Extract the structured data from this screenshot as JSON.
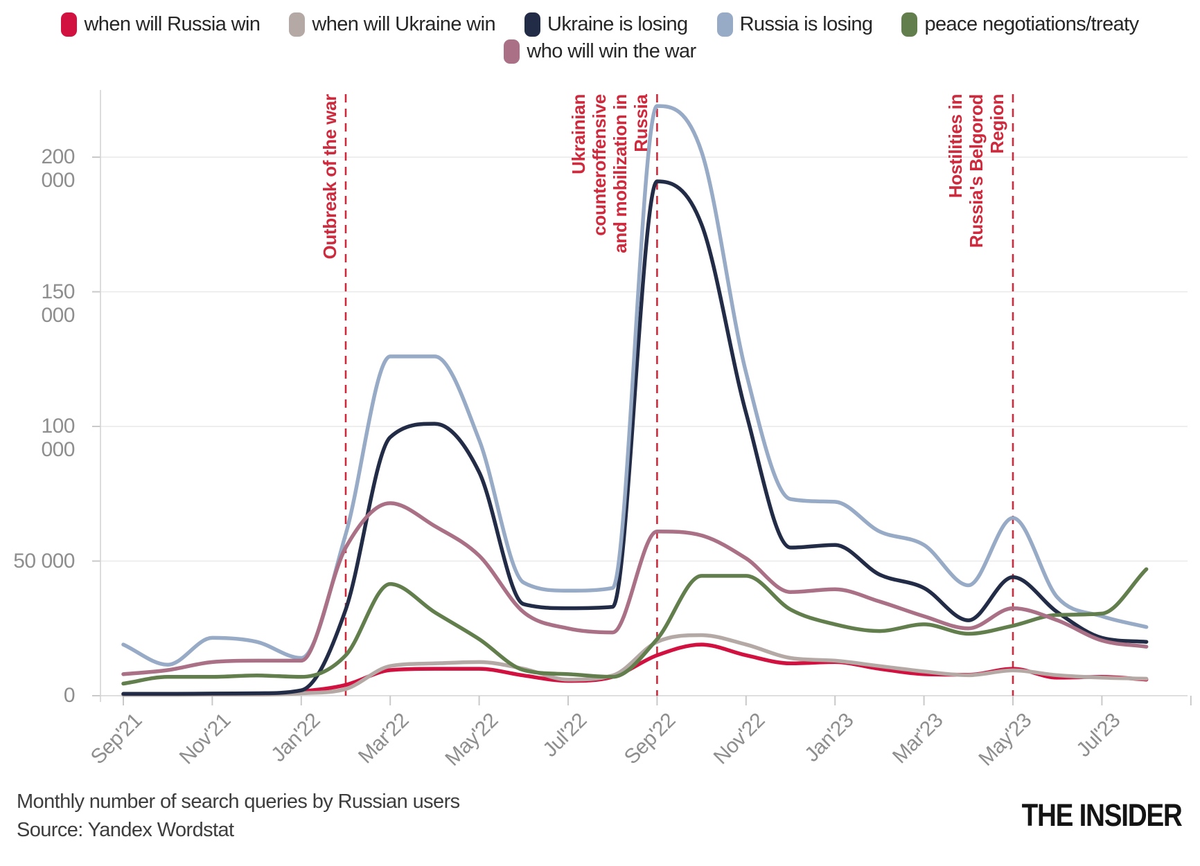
{
  "chart_data": {
    "type": "line",
    "title": "Monthly number of search queries by Russian users",
    "source": "Source: Yandex Wordstat",
    "legend_position": "top",
    "grid": true,
    "x_categories": [
      "Sep'21",
      "Oct'21",
      "Nov'21",
      "Dec'21",
      "Jan'22",
      "Feb'22",
      "Mar'22",
      "Apr'22",
      "May'22",
      "Jun'22",
      "Jul'22",
      "Aug'22",
      "Sep'22",
      "Oct'22",
      "Nov'22",
      "Dec'22",
      "Jan'23",
      "Feb'23",
      "Mar'23",
      "Apr'23",
      "May'23",
      "Jun'23",
      "Jul'23",
      "Aug'23"
    ],
    "x_ticks": [
      {
        "month_index": 0,
        "label": "Sep'21"
      },
      {
        "month_index": 2,
        "label": "Nov'21"
      },
      {
        "month_index": 4,
        "label": "Jan'22"
      },
      {
        "month_index": 6,
        "label": "Mar'22"
      },
      {
        "month_index": 8,
        "label": "May'22"
      },
      {
        "month_index": 10,
        "label": "Jul'22"
      },
      {
        "month_index": 12,
        "label": "Sep'22"
      },
      {
        "month_index": 14,
        "label": "Nov'22"
      },
      {
        "month_index": 16,
        "label": "Jan'23"
      },
      {
        "month_index": 18,
        "label": "Mar'23"
      },
      {
        "month_index": 20,
        "label": "May'23"
      },
      {
        "month_index": 22,
        "label": "Jul'23"
      }
    ],
    "unlabeled_tick_indices": [
      24
    ],
    "y_axis": {
      "min": 0,
      "max": 224000,
      "ticks": [
        {
          "value": 0,
          "label": "0"
        },
        {
          "value": 50000,
          "label": "50 000"
        },
        {
          "value": 100000,
          "label": "100 000"
        },
        {
          "value": 150000,
          "label": "150 000"
        },
        {
          "value": 200000,
          "label": "200 000"
        }
      ]
    },
    "series": [
      {
        "name": "when will Russia win",
        "color": "#d11240",
        "values": [
          500,
          500,
          600,
          600,
          1600,
          4000,
          9500,
          10000,
          10000,
          7500,
          5500,
          7000,
          15000,
          19000,
          15000,
          12000,
          12500,
          10000,
          8000,
          7800,
          10000,
          6700,
          7000,
          6000
        ]
      },
      {
        "name": "when will Ukraine win",
        "color": "#b4a9a4",
        "values": [
          300,
          300,
          400,
          400,
          900,
          2500,
          11000,
          12000,
          12500,
          10000,
          6000,
          7500,
          20000,
          22500,
          19000,
          14000,
          13000,
          11000,
          9000,
          7600,
          9400,
          7600,
          6700,
          6300
        ]
      },
      {
        "name": "Ukraine is losing",
        "color": "#232c47",
        "values": [
          700,
          700,
          800,
          900,
          2000,
          32000,
          96000,
          101000,
          83000,
          34000,
          32500,
          33000,
          191000,
          175000,
          105000,
          55000,
          56000,
          45000,
          40000,
          28000,
          44000,
          31000,
          21500,
          20000
        ]
      },
      {
        "name": "Russia is losing",
        "color": "#97aac6",
        "values": [
          19000,
          11500,
          21500,
          20000,
          14000,
          60000,
          126000,
          126000,
          95000,
          42000,
          39000,
          40000,
          219000,
          202000,
          120000,
          73000,
          72000,
          61000,
          56000,
          41000,
          66000,
          36500,
          29500,
          25500
        ]
      },
      {
        "name": "peace negotiations/treaty",
        "color": "#637e4d",
        "values": [
          4500,
          7000,
          7000,
          7500,
          7000,
          15000,
          41500,
          31000,
          21000,
          9500,
          8000,
          7000,
          21000,
          44500,
          44500,
          32000,
          26500,
          24000,
          26500,
          23000,
          26000,
          30000,
          30500,
          47000
        ]
      },
      {
        "name": "who will win the war",
        "color": "#a97086",
        "values": [
          8000,
          9500,
          12500,
          13000,
          13000,
          55000,
          71500,
          63000,
          52000,
          31000,
          25000,
          23500,
          61000,
          59500,
          51000,
          38500,
          39500,
          35000,
          29500,
          25000,
          32500,
          28000,
          20500,
          18200
        ]
      }
    ],
    "annotations": [
      {
        "month_index": 5,
        "lines": [
          "Outbreak of the war"
        ],
        "color": "#ce2a3d"
      },
      {
        "month_index": 12,
        "lines": [
          "Ukrainian",
          "counteroffensive",
          "and mobilization in",
          "Russia"
        ],
        "color": "#ce2a3d"
      },
      {
        "month_index": 20,
        "lines": [
          "Hostilities in",
          "Russia's Belgorod",
          "Region"
        ],
        "color": "#ce2a3d"
      }
    ]
  },
  "logo": {
    "text": "THE INSIDER"
  }
}
